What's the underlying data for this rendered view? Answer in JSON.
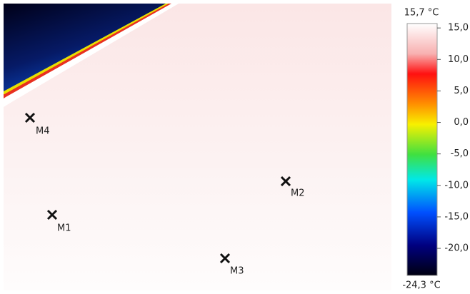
{
  "image": {
    "markers": [
      {
        "label": "M4"
      },
      {
        "label": "M1"
      },
      {
        "label": "M2"
      },
      {
        "label": "M3"
      }
    ]
  },
  "colorbar": {
    "max": {
      "value": 15.7,
      "label": "15,7 °C"
    },
    "min": {
      "value": -24.3,
      "label": "-24,3 °C"
    },
    "ticks": [
      {
        "value": 15,
        "label": "15,0"
      },
      {
        "value": 10,
        "label": "10,0"
      },
      {
        "value": 5,
        "label": "5,0"
      },
      {
        "value": 0,
        "label": "0,0"
      },
      {
        "value": -5,
        "label": "-5,0"
      },
      {
        "value": -10,
        "label": "-10,0"
      },
      {
        "value": -15,
        "label": "-15,0"
      },
      {
        "value": -20,
        "label": "-20,0"
      }
    ]
  }
}
